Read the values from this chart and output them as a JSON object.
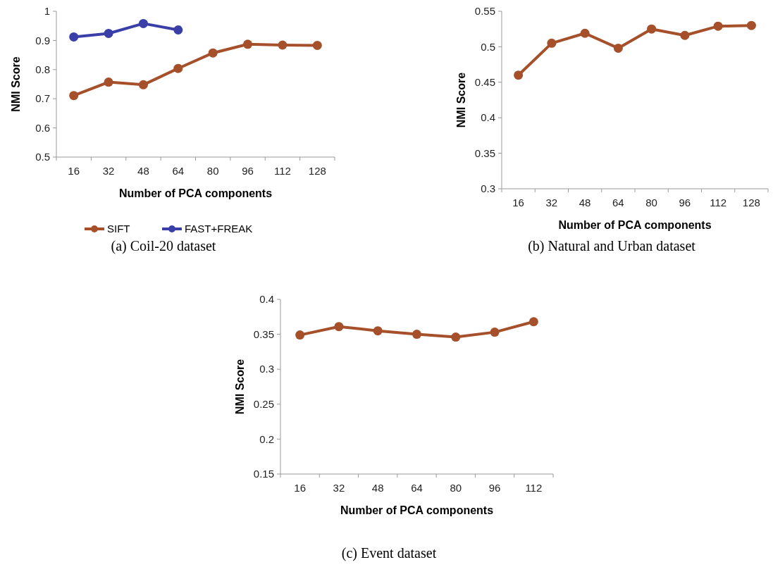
{
  "chart_data": [
    {
      "type": "line",
      "categories": [
        "16",
        "32",
        "48",
        "64",
        "80",
        "96",
        "112",
        "128"
      ],
      "xlabel": "Number of PCA components",
      "ylabel": "NMI Score",
      "ylim": [
        0.5,
        1
      ],
      "yticks": [
        0.5,
        0.6,
        0.7,
        0.8,
        0.9,
        1
      ],
      "grid": false,
      "legend": "bottom",
      "marker": "circle",
      "line_style": "solid",
      "annotations": [
        "(a) Coil-20 dataset"
      ],
      "series": [
        {
          "name": "SIFT",
          "color": "#a5502a",
          "values": [
            0.711,
            0.757,
            0.748,
            0.804,
            0.857,
            0.887,
            0.884,
            0.883
          ]
        },
        {
          "name": "FAST+FREAK",
          "color": "#3a3fa8",
          "values": [
            0.912,
            0.924,
            0.958,
            0.936,
            null,
            null,
            null,
            null
          ]
        }
      ]
    },
    {
      "type": "line",
      "categories": [
        "16",
        "32",
        "48",
        "64",
        "80",
        "96",
        "112",
        "128"
      ],
      "xlabel": "Number of PCA components",
      "ylabel": "NMI Score",
      "ylim": [
        0.3,
        0.55
      ],
      "yticks": [
        0.3,
        0.35,
        0.4,
        0.45,
        0.5,
        0.55
      ],
      "grid": false,
      "marker": "circle",
      "line_style": "solid",
      "annotations": [
        "(b) Natural and Urban dataset"
      ],
      "series": [
        {
          "color": "#a5502a",
          "values": [
            0.46,
            0.505,
            0.519,
            0.498,
            0.525,
            0.516,
            0.529,
            0.53
          ]
        }
      ]
    },
    {
      "type": "line",
      "categories": [
        "16",
        "32",
        "48",
        "64",
        "80",
        "96",
        "112"
      ],
      "xlabel": "Number of PCA components",
      "ylabel": "NMI Score",
      "ylim": [
        0.15,
        0.4
      ],
      "yticks": [
        0.15,
        0.2,
        0.25,
        0.3,
        0.35,
        0.4
      ],
      "grid": false,
      "marker": "circle",
      "line_style": "solid",
      "annotations": [
        "(c) Event dataset"
      ],
      "series": [
        {
          "color": "#a5502a",
          "values": [
            0.349,
            0.361,
            0.355,
            0.35,
            0.346,
            0.353,
            0.368
          ]
        }
      ]
    }
  ]
}
